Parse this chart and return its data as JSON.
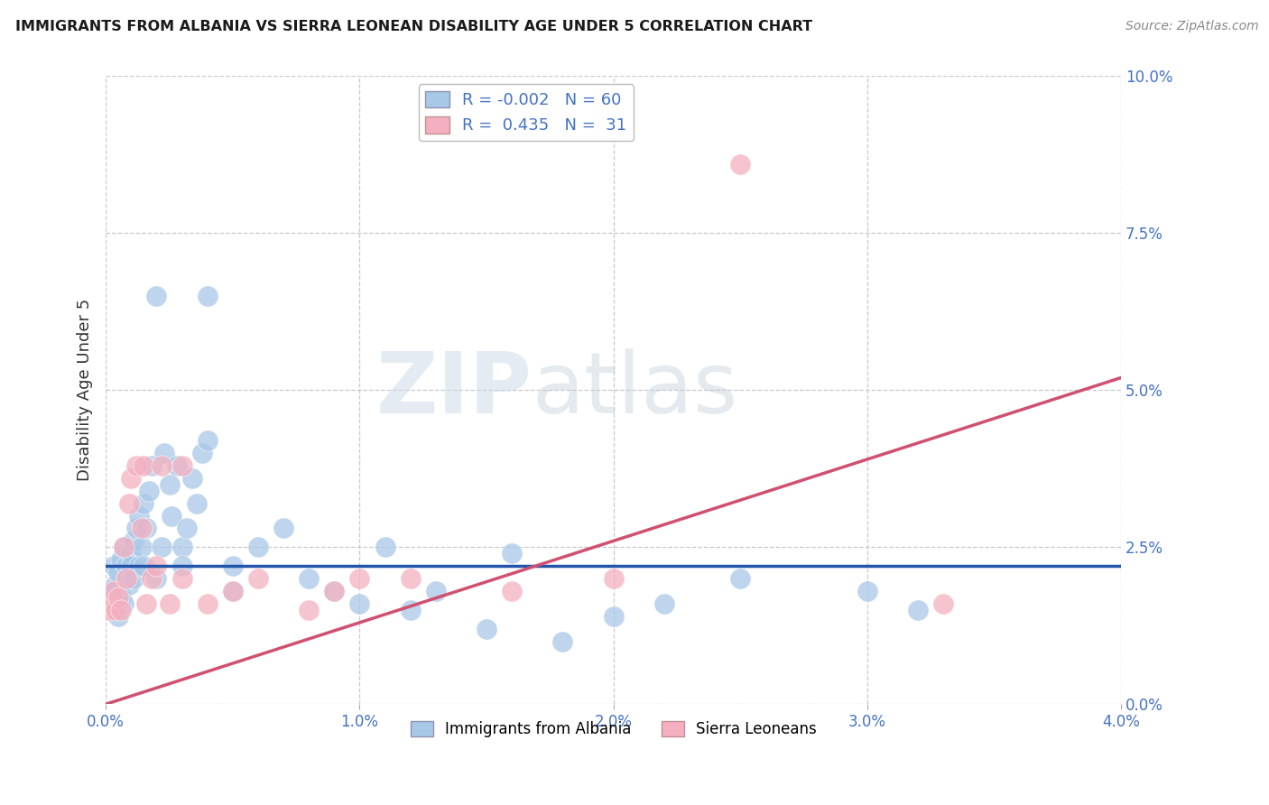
{
  "title": "IMMIGRANTS FROM ALBANIA VS SIERRA LEONEAN DISABILITY AGE UNDER 5 CORRELATION CHART",
  "source": "Source: ZipAtlas.com",
  "ylabel": "Disability Age Under 5",
  "legend_label_1": "Immigrants from Albania",
  "legend_label_2": "Sierra Leoneans",
  "r1": "-0.002",
  "n1": "60",
  "r2": "0.435",
  "n2": "31",
  "color_blue": "#a8c8e8",
  "color_pink": "#f4b0c0",
  "color_blue_line": "#2255aa",
  "color_pink_line": "#d05070",
  "xlim": [
    0.0,
    0.04
  ],
  "ylim": [
    0.0,
    0.1
  ],
  "xticks": [
    0.0,
    0.01,
    0.02,
    0.03,
    0.04
  ],
  "yticks_right": [
    0.0,
    0.025,
    0.05,
    0.075,
    0.1
  ],
  "blue_scatter_x": [
    0.0002,
    0.0003,
    0.0003,
    0.0004,
    0.0004,
    0.0005,
    0.0005,
    0.0006,
    0.0006,
    0.0007,
    0.0007,
    0.0008,
    0.0008,
    0.0009,
    0.001,
    0.001,
    0.0011,
    0.0011,
    0.0012,
    0.0013,
    0.0013,
    0.0014,
    0.0015,
    0.0015,
    0.0016,
    0.0017,
    0.0018,
    0.002,
    0.002,
    0.0022,
    0.0023,
    0.0025,
    0.0026,
    0.0028,
    0.003,
    0.003,
    0.0032,
    0.0034,
    0.0036,
    0.0038,
    0.004,
    0.004,
    0.005,
    0.005,
    0.006,
    0.007,
    0.008,
    0.009,
    0.01,
    0.011,
    0.012,
    0.013,
    0.015,
    0.016,
    0.018,
    0.02,
    0.022,
    0.025,
    0.03,
    0.032
  ],
  "blue_scatter_y": [
    0.018,
    0.015,
    0.022,
    0.016,
    0.019,
    0.014,
    0.021,
    0.017,
    0.023,
    0.016,
    0.025,
    0.02,
    0.022,
    0.019,
    0.024,
    0.022,
    0.026,
    0.02,
    0.028,
    0.022,
    0.03,
    0.025,
    0.032,
    0.022,
    0.028,
    0.034,
    0.038,
    0.065,
    0.02,
    0.025,
    0.04,
    0.035,
    0.03,
    0.038,
    0.025,
    0.022,
    0.028,
    0.036,
    0.032,
    0.04,
    0.065,
    0.042,
    0.022,
    0.018,
    0.025,
    0.028,
    0.02,
    0.018,
    0.016,
    0.025,
    0.015,
    0.018,
    0.012,
    0.024,
    0.01,
    0.014,
    0.016,
    0.02,
    0.018,
    0.015
  ],
  "pink_scatter_x": [
    0.0001,
    0.0002,
    0.0003,
    0.0004,
    0.0005,
    0.0006,
    0.0007,
    0.0008,
    0.0009,
    0.001,
    0.0012,
    0.0014,
    0.0015,
    0.0016,
    0.0018,
    0.002,
    0.0022,
    0.0025,
    0.003,
    0.003,
    0.004,
    0.005,
    0.006,
    0.008,
    0.009,
    0.01,
    0.012,
    0.016,
    0.02,
    0.025,
    0.033
  ],
  "pink_scatter_y": [
    0.015,
    0.016,
    0.018,
    0.015,
    0.017,
    0.015,
    0.025,
    0.02,
    0.032,
    0.036,
    0.038,
    0.028,
    0.038,
    0.016,
    0.02,
    0.022,
    0.038,
    0.016,
    0.02,
    0.038,
    0.016,
    0.018,
    0.02,
    0.015,
    0.018,
    0.02,
    0.02,
    0.018,
    0.02,
    0.086,
    0.016
  ],
  "blue_line_x": [
    0.0,
    0.04
  ],
  "blue_line_y": [
    0.022,
    0.022
  ],
  "pink_line_x": [
    0.0,
    0.04
  ],
  "pink_line_y": [
    0.0,
    0.052
  ],
  "watermark_zip": "ZIP",
  "watermark_atlas": "atlas",
  "background_color": "#ffffff",
  "grid_color": "#c8c8d0",
  "axis_label_color": "#4472c4",
  "title_color": "#1a1a1a",
  "source_color": "#888888",
  "ylabel_color": "#333333"
}
